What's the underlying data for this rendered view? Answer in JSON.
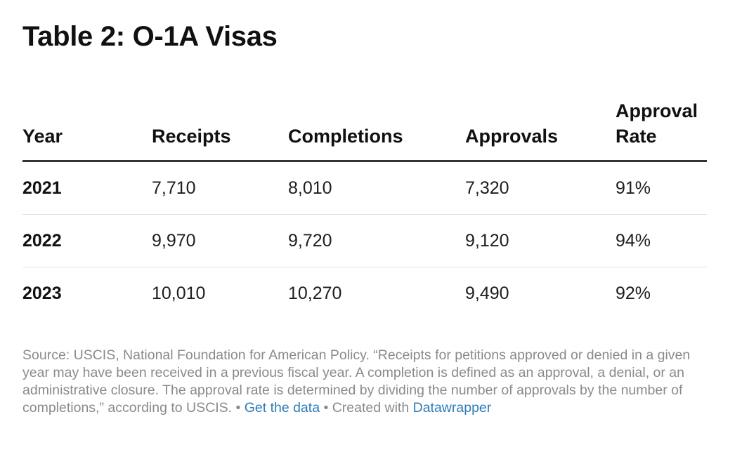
{
  "title": "Table 2: O-1A Visas",
  "chart_data": {
    "type": "table",
    "title": "Table 2: O-1A Visas",
    "columns": [
      "Year",
      "Receipts",
      "Completions",
      "Approvals",
      "Approval Rate"
    ],
    "rows": [
      {
        "year": "2021",
        "receipts": "7,710",
        "completions": "8,010",
        "approvals": "7,320",
        "approval_rate": "91%"
      },
      {
        "year": "2022",
        "receipts": "9,970",
        "completions": "9,720",
        "approvals": "9,120",
        "approval_rate": "94%"
      },
      {
        "year": "2023",
        "receipts": "10,010",
        "completions": "10,270",
        "approvals": "9,490",
        "approval_rate": "92%"
      }
    ]
  },
  "footer": {
    "source_text": "Source: USCIS, National Foundation for American Policy. “Receipts for petitions approved or denied in a given year may have been received in a previous fiscal year. A completion is defined as an approval, a denial, or an administrative closure. The approval rate is determined by dividing the number of approvals by the number of completions,” according to USCIS.",
    "separator_1": " • ",
    "get_data_label": "Get the data",
    "separator_2": " • ",
    "created_with_text": "Created with ",
    "datawrapper_label": "Datawrapper"
  }
}
